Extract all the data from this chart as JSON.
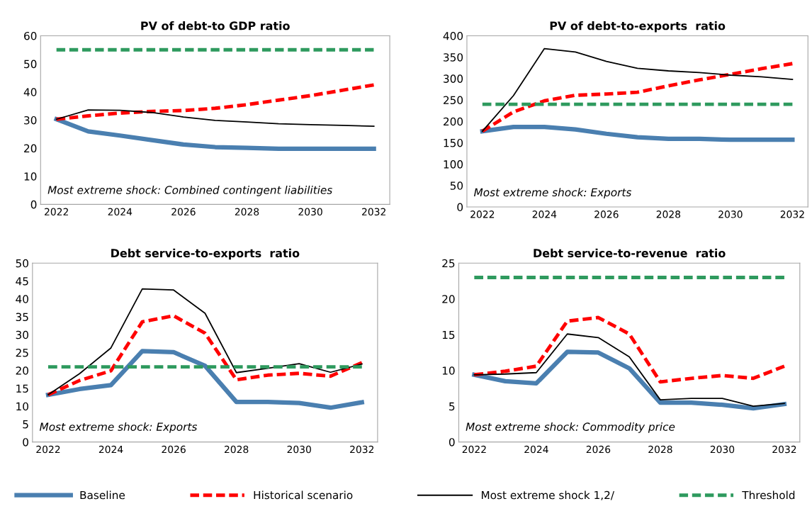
{
  "chart_data": [
    {
      "type": "line",
      "title": "PV of debt-to GDP ratio",
      "categories": [
        "2022",
        null,
        "2024",
        null,
        "2026",
        null,
        "2028",
        null,
        "2030",
        null,
        "2032"
      ],
      "ylim": [
        0,
        60
      ],
      "yticks": [
        0,
        10,
        20,
        30,
        40,
        50,
        60
      ],
      "grid": false,
      "legend": "bottom",
      "annotations": [
        "Most extreme shock: Combined contingent liabilities"
      ],
      "series": [
        {
          "name": "Baseline",
          "color": "#4a7fb0",
          "line_style": "solid",
          "values": [
            30.3,
            26,
            24.5,
            22.9,
            21.3,
            20.4,
            20.1,
            19.8,
            19.8,
            19.8,
            19.8
          ]
        },
        {
          "name": "Historical scenario",
          "color": "#ff0000",
          "line_style": "dashed",
          "values": [
            30.3,
            31.5,
            32.5,
            33.1,
            33.4,
            34.2,
            35.5,
            37.1,
            38.7,
            40.6,
            42.5
          ]
        },
        {
          "name": "Most extreme shock 1,2/",
          "color": "#000000",
          "line_style": "solid",
          "values": [
            30.3,
            33.6,
            33.5,
            32.7,
            31.1,
            29.9,
            29.3,
            28.7,
            28.4,
            28.1,
            27.8
          ]
        },
        {
          "name": "Threshold",
          "color": "#2e9a5e",
          "line_style": "dashed",
          "values": [
            55,
            55,
            55,
            55,
            55,
            55,
            55,
            55,
            55,
            55,
            55
          ]
        }
      ]
    },
    {
      "type": "line",
      "title": "PV of debt-to-exports  ratio",
      "categories": [
        "2022",
        null,
        "2024",
        null,
        "2026",
        null,
        "2028",
        null,
        "2030",
        null,
        "2032"
      ],
      "ylim": [
        0,
        400
      ],
      "yticks": [
        0,
        50,
        100,
        150,
        200,
        250,
        300,
        350,
        400
      ],
      "grid": false,
      "annotations": [
        "Most extreme shock: Exports"
      ],
      "series": [
        {
          "name": "Baseline",
          "color": "#4a7fb0",
          "line_style": "solid",
          "values": [
            177,
            187,
            187,
            181,
            171,
            163,
            159,
            159,
            157,
            157,
            157
          ]
        },
        {
          "name": "Historical scenario",
          "color": "#ff0000",
          "line_style": "dashed",
          "values": [
            177,
            222,
            248,
            261,
            264,
            268,
            283,
            297,
            310,
            323,
            335
          ]
        },
        {
          "name": "Most extreme shock 1,2/",
          "color": "#000000",
          "line_style": "solid",
          "values": [
            177,
            260,
            370,
            362,
            340,
            324,
            318,
            314,
            308,
            304,
            298
          ]
        },
        {
          "name": "Threshold",
          "color": "#2e9a5e",
          "line_style": "dashed",
          "values": [
            240,
            240,
            240,
            240,
            240,
            240,
            240,
            240,
            240,
            240,
            240
          ]
        }
      ]
    },
    {
      "type": "line",
      "title": "Debt service-to-exports  ratio",
      "categories": [
        "2022",
        null,
        "2024",
        null,
        "2026",
        null,
        "2028",
        null,
        "2030",
        null,
        "2032"
      ],
      "ylim": [
        0,
        50
      ],
      "yticks": [
        0,
        5,
        10,
        15,
        20,
        25,
        30,
        35,
        40,
        45,
        50
      ],
      "grid": false,
      "annotations": [
        "Most extreme shock: Exports"
      ],
      "series": [
        {
          "name": "Baseline",
          "color": "#4a7fb0",
          "line_style": "solid",
          "values": [
            13.2,
            14.8,
            15.9,
            25.4,
            25.1,
            21.3,
            11.2,
            11.2,
            10.9,
            9.6,
            11.1
          ]
        },
        {
          "name": "Historical scenario",
          "color": "#ff0000",
          "line_style": "dashed",
          "values": [
            13.2,
            17.2,
            19.9,
            33.6,
            35.3,
            30.4,
            17.4,
            18.7,
            19.2,
            18.4,
            22.2
          ]
        },
        {
          "name": "Most extreme shock 1,2/",
          "color": "#000000",
          "line_style": "solid",
          "values": [
            13.2,
            19.1,
            26.3,
            42.8,
            42.5,
            36.0,
            19.4,
            20.6,
            21.9,
            19.5,
            21.8
          ]
        },
        {
          "name": "Threshold",
          "color": "#2e9a5e",
          "line_style": "dashed",
          "values": [
            21,
            21,
            21,
            21,
            21,
            21,
            21,
            21,
            21,
            21,
            21
          ]
        }
      ]
    },
    {
      "type": "line",
      "title": "Debt service-to-revenue  ratio",
      "categories": [
        "2022",
        null,
        "2024",
        null,
        "2026",
        null,
        "2028",
        null,
        "2030",
        null,
        "2032"
      ],
      "ylim": [
        0,
        25
      ],
      "yticks": [
        0,
        5,
        10,
        15,
        20,
        25
      ],
      "grid": false,
      "annotations": [
        "Most extreme shock: Commodity price"
      ],
      "series": [
        {
          "name": "Baseline",
          "color": "#4a7fb0",
          "line_style": "solid",
          "values": [
            9.4,
            8.5,
            8.2,
            12.6,
            12.5,
            10.3,
            5.5,
            5.5,
            5.2,
            4.7,
            5.3
          ]
        },
        {
          "name": "Historical scenario",
          "color": "#ff0000",
          "line_style": "dashed",
          "values": [
            9.4,
            9.9,
            10.6,
            16.9,
            17.4,
            15.1,
            8.4,
            8.9,
            9.3,
            8.9,
            10.6
          ]
        },
        {
          "name": "Most extreme shock 1,2/",
          "color": "#000000",
          "line_style": "solid",
          "values": [
            9.4,
            9.5,
            9.7,
            15.1,
            14.6,
            11.9,
            5.9,
            6.1,
            6.1,
            5.0,
            5.4
          ]
        },
        {
          "name": "Threshold",
          "color": "#2e9a5e",
          "line_style": "dashed",
          "values": [
            23,
            23,
            23,
            23,
            23,
            23,
            23,
            23,
            23,
            23,
            23
          ]
        }
      ]
    }
  ]
}
